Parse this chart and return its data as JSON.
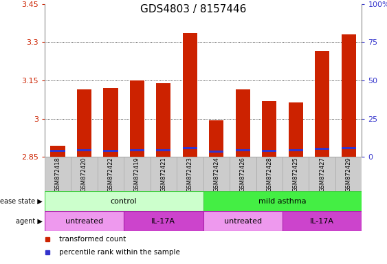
{
  "title": "GDS4803 / 8157446",
  "samples": [
    "GSM872418",
    "GSM872420",
    "GSM872422",
    "GSM872419",
    "GSM872421",
    "GSM872423",
    "GSM872424",
    "GSM872426",
    "GSM872428",
    "GSM872425",
    "GSM872427",
    "GSM872429"
  ],
  "bar_values": [
    2.895,
    3.115,
    3.12,
    3.15,
    3.14,
    3.335,
    2.995,
    3.115,
    3.07,
    3.065,
    3.265,
    3.33
  ],
  "percentile_values": [
    2.875,
    2.878,
    2.875,
    2.876,
    2.876,
    2.885,
    2.872,
    2.876,
    2.875,
    2.876,
    2.882,
    2.884
  ],
  "bar_bottom": 2.85,
  "ylim_min": 2.85,
  "ylim_max": 3.45,
  "yticks_left": [
    2.85,
    3.0,
    3.15,
    3.3,
    3.45
  ],
  "yticks_right": [
    0,
    25,
    50,
    75,
    100
  ],
  "ytick_labels_left": [
    "2.85",
    "3",
    "3.15",
    "3.3",
    "3.45"
  ],
  "ytick_labels_right": [
    "0",
    "25",
    "50",
    "75",
    "100%"
  ],
  "bar_color": "#cc2200",
  "percentile_color": "#3333cc",
  "bg_color": "#cccccc",
  "disease_state_groups": [
    {
      "label": "control",
      "start": 0,
      "end": 6,
      "color": "#ccffcc",
      "edge_color": "#44cc44"
    },
    {
      "label": "mild asthma",
      "start": 6,
      "end": 12,
      "color": "#44ee44",
      "edge_color": "#44cc44"
    }
  ],
  "agent_groups": [
    {
      "label": "untreated",
      "start": 0,
      "end": 3,
      "color": "#ee99ee"
    },
    {
      "label": "IL-17A",
      "start": 3,
      "end": 6,
      "color": "#cc44cc"
    },
    {
      "label": "untreated",
      "start": 6,
      "end": 9,
      "color": "#ee99ee"
    },
    {
      "label": "IL-17A",
      "start": 9,
      "end": 12,
      "color": "#cc44cc"
    }
  ],
  "disease_label": "disease state",
  "agent_label": "agent",
  "legend_items": [
    "transformed count",
    "percentile rank within the sample"
  ],
  "legend_colors": [
    "#cc2200",
    "#3333cc"
  ],
  "title_fontsize": 11,
  "tick_fontsize": 8,
  "sample_fontsize": 6,
  "row_fontsize": 8,
  "legend_fontsize": 7.5
}
